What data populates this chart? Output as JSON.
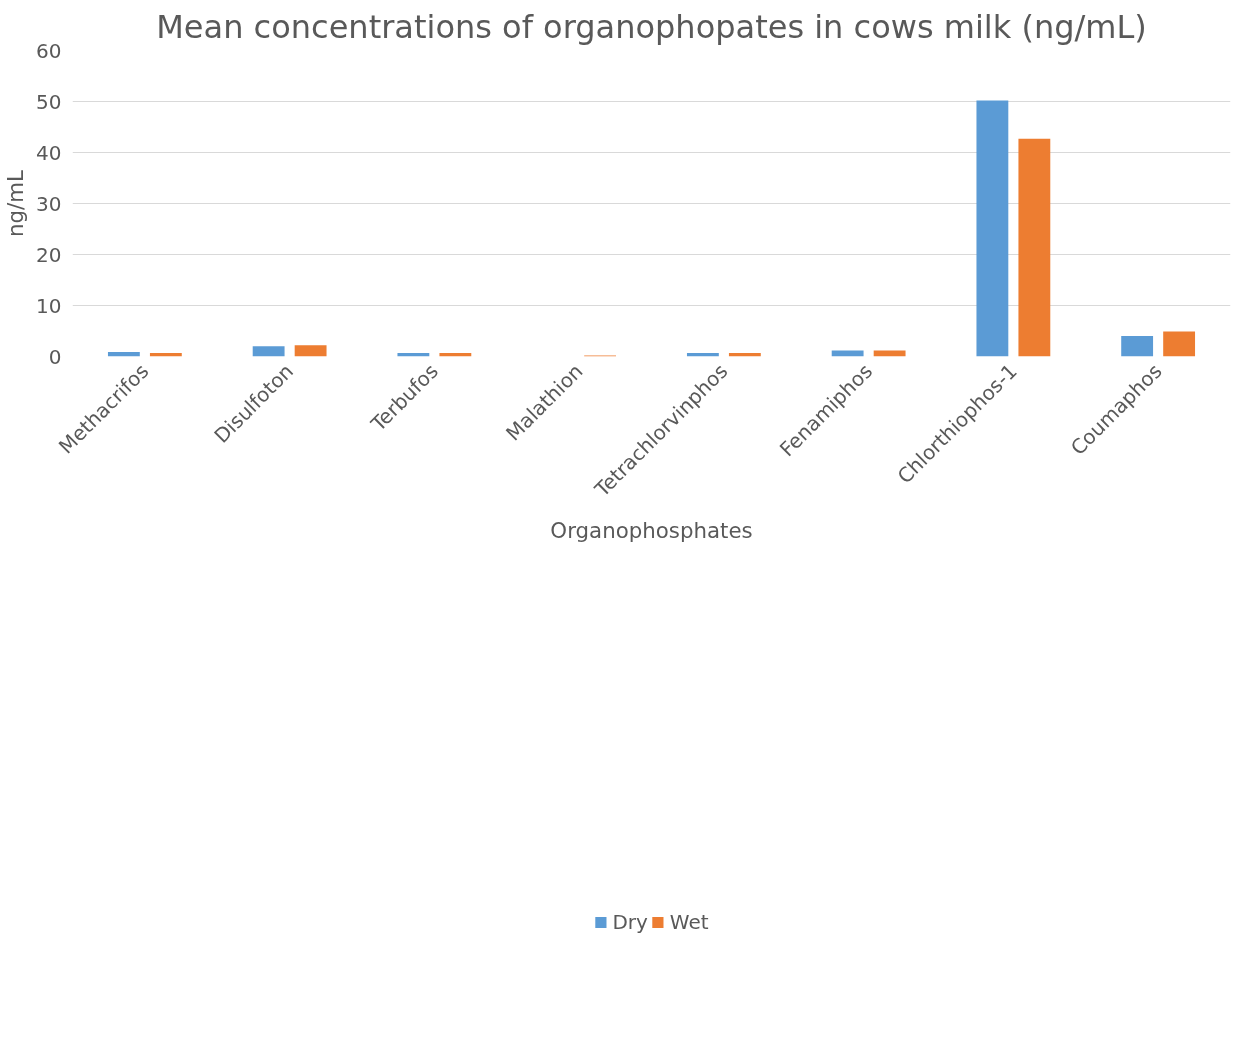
{
  "chart_data": {
    "type": "bar",
    "title": "Mean concentrations of organophopates in cows milk (ng/mL)",
    "xlabel": "Organophosphates",
    "ylabel": "ng/mL",
    "categories": [
      "Methacrifos",
      "Disulfoton",
      "Terbufos",
      "Malathion",
      "Tetrachlorvinphos",
      "Fenamiphos",
      "Chlorthiophos-1",
      "Coumaphos"
    ],
    "series": [
      {
        "name": "Dry",
        "color": "#5b9bd5",
        "values": [
          0.9,
          2.0,
          0.7,
          0,
          0.7,
          1.2,
          50.2,
          4.0
        ]
      },
      {
        "name": "Wet",
        "color": "#ed7d31",
        "values": [
          0.7,
          2.2,
          0.7,
          0.2,
          0.7,
          1.2,
          42.7,
          4.9
        ]
      }
    ],
    "ylim": [
      0,
      60
    ],
    "yticks": [
      0,
      10,
      20,
      30,
      40,
      50,
      60
    ],
    "grid": "y",
    "legend": "bottom"
  }
}
